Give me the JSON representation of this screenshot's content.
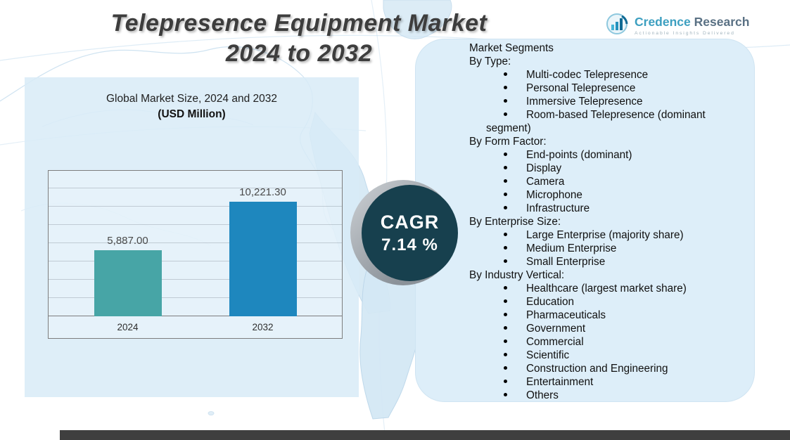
{
  "page": {
    "title_line1": "Telepresence Equipment Market",
    "title_line2": "2024 to 2032"
  },
  "logo": {
    "brand_primary": "Credence",
    "brand_secondary": "Research",
    "tagline": "Actionable Insights Delivered"
  },
  "market_size_panel": {
    "subtitle": "Global Market Size, 2024 and 2032",
    "unit_label": "(USD Million)"
  },
  "cagr_badge": {
    "label": "CAGR",
    "value": "7.14 %"
  },
  "chart_data": {
    "type": "bar",
    "title": "Global Market Size, 2024 and 2032 (USD Million)",
    "categories": [
      "2024",
      "2032"
    ],
    "values": [
      5887.0,
      10221.3
    ],
    "value_labels": [
      "5,887.00",
      "10,221.30"
    ],
    "bar_colors": [
      "#47a5a6",
      "#1e87be"
    ],
    "ylim": [
      0,
      13000
    ],
    "grid": true,
    "legend": false,
    "xlabel": "",
    "ylabel": ""
  },
  "segments": {
    "heading": "Market Segments",
    "groups": [
      {
        "label": "By Type:",
        "items": [
          "Multi-codec Telepresence",
          "Personal Telepresence",
          "Immersive Telepresence",
          "Room-based Telepresence (dominant segment)"
        ]
      },
      {
        "label": "By Form Factor:",
        "items": [
          "End-points (dominant)",
          "Display",
          "Camera",
          "Microphone",
          "Infrastructure"
        ]
      },
      {
        "label": "By Enterprise Size:",
        "items": [
          "Large Enterprise (majority share)",
          "Medium Enterprise",
          "Small Enterprise"
        ]
      },
      {
        "label": "By Industry Vertical:",
        "items": [
          "Healthcare (largest market share)",
          "Education",
          "Pharmaceuticals",
          "Government",
          "Commercial",
          "Scientific",
          "Construction and Engineering",
          "Entertainment",
          "Others"
        ]
      }
    ]
  },
  "colors": {
    "cagr_circle": "#17404e",
    "left_panel_blue": "#d8ebf7",
    "right_panel_blue": "#ddeef9",
    "footer_bar": "#3f3f3f",
    "title_text": "#3d3d3d"
  }
}
